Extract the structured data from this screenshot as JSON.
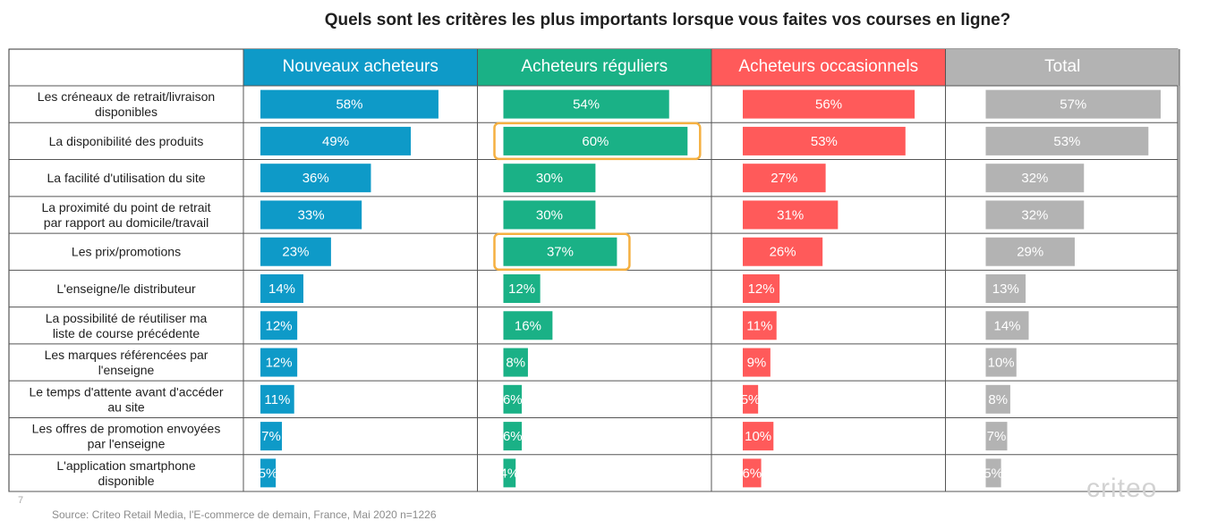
{
  "title": "Quels sont les critères les plus importants lorsque vous faites vos courses en ligne?",
  "source": "Source: Criteo Retail Media, l'E-commerce de demain, France, Mai 2020 n=1226",
  "page_number": "7",
  "logo": "criteo",
  "chart_data": {
    "type": "bar",
    "orientation": "horizontal",
    "categories": [
      "Les créneaux de retrait/livraison disponibles",
      "La disponibilité des produits",
      "La facilité d'utilisation du site",
      "La proximité du point de retrait par rapport au domicile/travail",
      "Les prix/promotions",
      "L'enseigne/le distributeur",
      "La possibilité de réutiliser ma liste de course précédente",
      "Les marques référencées par l'enseigne",
      "Le temps d'attente avant d'accéder au site",
      "Les offres de promotion envoyées par l'enseigne",
      "L'application smartphone disponible"
    ],
    "series": [
      {
        "name": "Nouveaux acheteurs",
        "color": "#0e9ac8",
        "values": [
          58,
          49,
          36,
          33,
          23,
          14,
          12,
          12,
          11,
          7,
          5
        ]
      },
      {
        "name": "Acheteurs réguliers",
        "color": "#1ab186",
        "values": [
          54,
          60,
          30,
          30,
          37,
          12,
          16,
          8,
          6,
          6,
          4
        ]
      },
      {
        "name": "Acheteurs occasionnels",
        "color": "#ff5a5a",
        "values": [
          56,
          53,
          27,
          31,
          26,
          12,
          11,
          9,
          5,
          10,
          6
        ]
      },
      {
        "name": "Total",
        "color": "#b3b3b3",
        "values": [
          57,
          53,
          32,
          32,
          29,
          13,
          14,
          10,
          8,
          7,
          5
        ]
      }
    ],
    "value_suffix": "%",
    "highlights": [
      {
        "series": 1,
        "category": 1,
        "color": "#f5b041"
      },
      {
        "series": 1,
        "category": 4,
        "color": "#f5b041"
      }
    ],
    "grid": true
  }
}
